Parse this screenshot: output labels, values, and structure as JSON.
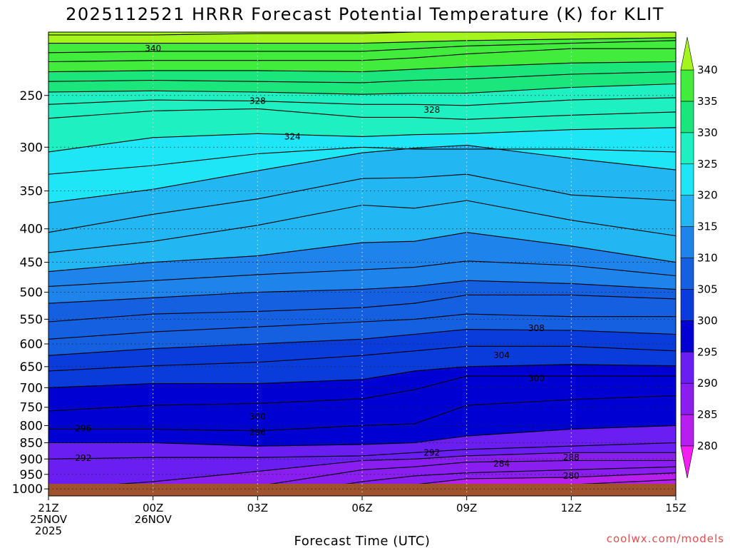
{
  "title": "2025112521 HRRR Forecast Potential Temperature (K) for KLIT",
  "xlabel": "Forecast Time (UTC)",
  "credit": "coolwx.com/models",
  "chart_data": {
    "type": "contour",
    "title": "2025112521 HRRR Forecast Potential Temperature (K) for KLIT",
    "xlabel": "Forecast Time (UTC)",
    "ylabel": "",
    "y_axis": {
      "scale": "log-pressure",
      "reversed": true,
      "range_hPa": [
        1025,
        200
      ],
      "ticks": [
        250,
        300,
        350,
        400,
        450,
        500,
        550,
        600,
        650,
        700,
        750,
        800,
        850,
        900,
        950,
        1000
      ]
    },
    "x_axis": {
      "range_hours": [
        0,
        18
      ],
      "ticks": [
        {
          "hour": 0,
          "lines": [
            "21Z",
            "25NOV",
            "2025"
          ]
        },
        {
          "hour": 3,
          "lines": [
            "00Z",
            "26NOV"
          ]
        },
        {
          "hour": 6,
          "lines": [
            "03Z"
          ]
        },
        {
          "hour": 9,
          "lines": [
            "06Z"
          ]
        },
        {
          "hour": 12,
          "lines": [
            "09Z"
          ]
        },
        {
          "hour": 15,
          "lines": [
            "12Z"
          ]
        },
        {
          "hour": 18,
          "lines": [
            "15Z"
          ]
        }
      ]
    },
    "grid": true,
    "colorbar": {
      "levels": [
        280,
        285,
        290,
        295,
        300,
        305,
        310,
        315,
        320,
        325,
        330,
        335,
        340
      ],
      "colors": [
        "#f21ef2",
        "#b81eee",
        "#8a1ef0",
        "#6a1ef2",
        "#0000d2",
        "#0a3cdc",
        "#1460e0",
        "#1e84ec",
        "#22b6f2",
        "#1ee6f6",
        "#1ef0c2",
        "#1ae67c",
        "#42ec3c",
        "#a4f41e"
      ],
      "extend": "both"
    },
    "contour_interval": 4,
    "contour_labels": [
      {
        "value": 340,
        "hour": 3.0,
        "p": 212
      },
      {
        "value": 328,
        "hour": 6.0,
        "p": 255
      },
      {
        "value": 328,
        "hour": 11.0,
        "p": 263
      },
      {
        "value": 324,
        "hour": 7.0,
        "p": 289
      },
      {
        "value": 308,
        "hour": 14.0,
        "p": 568
      },
      {
        "value": 304,
        "hour": 13.0,
        "p": 625
      },
      {
        "value": 300,
        "hour": 14.0,
        "p": 678
      },
      {
        "value": 300,
        "hour": 6.0,
        "p": 775
      },
      {
        "value": 296,
        "hour": 1.0,
        "p": 808
      },
      {
        "value": 296,
        "hour": 6.0,
        "p": 820
      },
      {
        "value": 292,
        "hour": 1.0,
        "p": 897
      },
      {
        "value": 292,
        "hour": 11.0,
        "p": 880
      },
      {
        "value": 288,
        "hour": 15.0,
        "p": 895
      },
      {
        "value": 284,
        "hour": 13.0,
        "p": 915
      },
      {
        "value": 280,
        "hour": 15.0,
        "p": 955
      }
    ],
    "series": [
      {
        "value": 342,
        "p": [
          202,
          202,
          201,
          201,
          200,
          200,
          200,
          200
        ]
      },
      {
        "value": 340,
        "p": [
          208,
          208,
          208,
          208,
          207,
          206,
          205,
          204
        ]
      },
      {
        "value": 338,
        "p": [
          215,
          214,
          214,
          214,
          212,
          210,
          208,
          206
        ]
      },
      {
        "value": 336,
        "p": [
          222,
          221,
          221,
          221,
          219,
          216,
          212,
          212
        ]
      },
      {
        "value": 334,
        "p": [
          230,
          229,
          229,
          230,
          228,
          226,
          223,
          222
        ]
      },
      {
        "value": 332,
        "p": [
          238,
          237,
          238,
          239,
          237,
          236,
          232,
          230
        ]
      },
      {
        "value": 330,
        "p": [
          247,
          246,
          247,
          249,
          248,
          248,
          243,
          240
        ]
      },
      {
        "value": 328,
        "p": [
          258,
          254,
          255,
          258,
          258,
          259,
          254,
          252
        ]
      },
      {
        "value": 326,
        "p": [
          271,
          264,
          262,
          270,
          270,
          272,
          268,
          265
        ]
      },
      {
        "value": 324,
        "p": [
          305,
          290,
          286,
          289,
          287,
          286,
          282,
          280
        ]
      },
      {
        "value": 322,
        "p": [
          330,
          320,
          307,
          300,
          302,
          302,
          302,
          305
        ]
      },
      {
        "value": 320,
        "p": [
          365,
          348,
          326,
          306,
          301,
          298,
          312,
          325
        ]
      },
      {
        "value": 318,
        "p": [
          405,
          380,
          360,
          335,
          334,
          330,
          355,
          362
        ]
      },
      {
        "value": 316,
        "p": [
          435,
          418,
          395,
          368,
          372,
          362,
          388,
          410
        ]
      },
      {
        "value": 314,
        "p": [
          465,
          450,
          440,
          420,
          418,
          405,
          425,
          450
        ]
      },
      {
        "value": 312,
        "p": [
          490,
          480,
          470,
          462,
          458,
          448,
          455,
          472
        ]
      },
      {
        "value": 310,
        "p": [
          520,
          510,
          500,
          495,
          490,
          480,
          485,
          495
        ]
      },
      {
        "value": 308,
        "p": [
          555,
          540,
          535,
          528,
          520,
          505,
          505,
          512
        ]
      },
      {
        "value": 306,
        "p": [
          590,
          575,
          565,
          555,
          550,
          540,
          545,
          545
        ]
      },
      {
        "value": 304,
        "p": [
          625,
          610,
          600,
          590,
          580,
          570,
          572,
          580
        ]
      },
      {
        "value": 302,
        "p": [
          660,
          648,
          640,
          625,
          615,
          605,
          605,
          615
        ]
      },
      {
        "value": 300,
        "p": [
          700,
          690,
          690,
          680,
          660,
          650,
          645,
          648
        ]
      },
      {
        "value": 298,
        "p": [
          760,
          745,
          740,
          728,
          705,
          672,
          672,
          672
        ]
      },
      {
        "value": 296,
        "p": [
          810,
          810,
          815,
          800,
          795,
          745,
          730,
          720
        ]
      },
      {
        "value": 294,
        "p": [
          850,
          850,
          860,
          855,
          850,
          830,
          810,
          800
        ]
      },
      {
        "value": 292,
        "p": [
          900,
          895,
          895,
          890,
          880,
          870,
          860,
          850
        ]
      },
      {
        "value": 290,
        "p": [
          1000,
          975,
          940,
          905,
          900,
          890,
          880,
          880
        ]
      },
      {
        "value": 288,
        "p": [
          1030,
          1030,
          990,
          935,
          925,
          910,
          905,
          905
        ]
      },
      {
        "value": 286,
        "p": [
          1030,
          1030,
          1030,
          975,
          955,
          945,
          935,
          925
        ]
      },
      {
        "value": 284,
        "p": [
          1030,
          1030,
          1030,
          1030,
          985,
          965,
          960,
          945
        ]
      },
      {
        "value": 282,
        "p": [
          1030,
          1030,
          1030,
          1030,
          1030,
          1000,
          985,
          968
        ]
      },
      {
        "value": 280,
        "p": [
          1030,
          1030,
          1030,
          1030,
          1030,
          1030,
          1015,
          990
        ]
      }
    ],
    "series_hours": [
      0,
      3,
      6,
      9,
      10.5,
      12,
      15,
      18
    ]
  }
}
